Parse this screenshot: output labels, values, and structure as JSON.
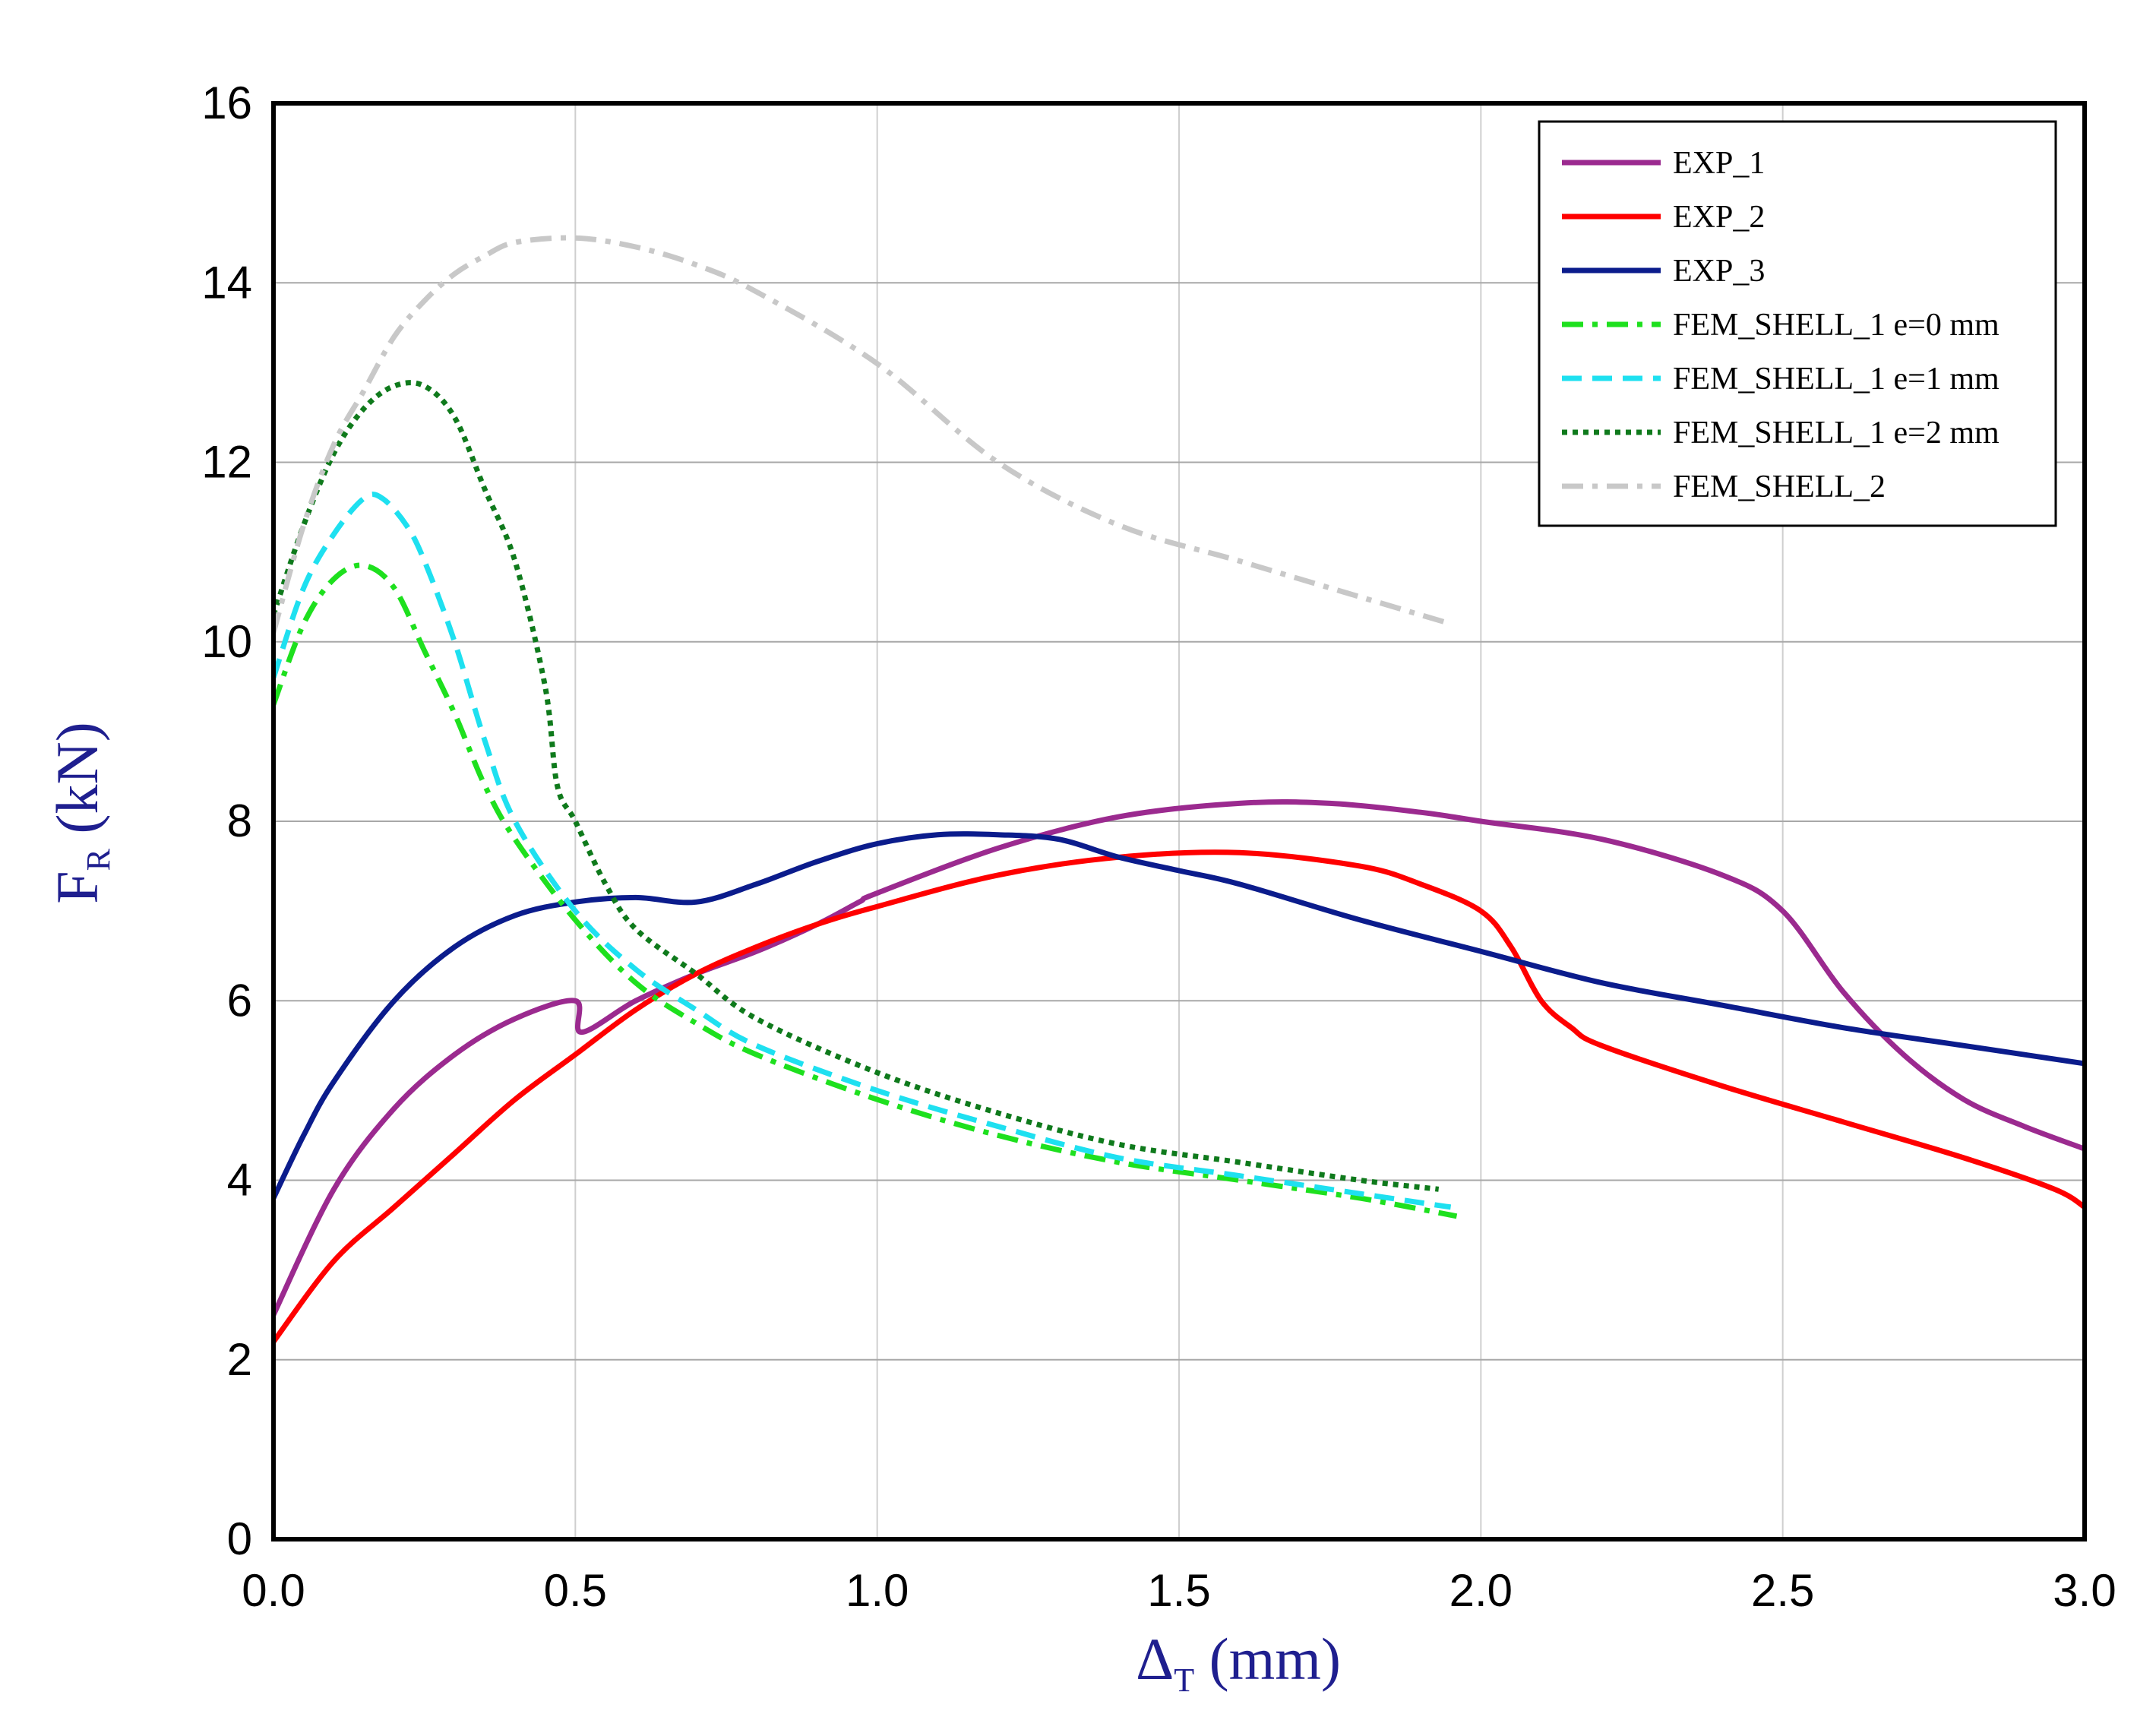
{
  "chart_data": {
    "type": "line",
    "title": "",
    "xlabel": {
      "main": "Δ",
      "sub": "T",
      "unit": " (mm)"
    },
    "ylabel": {
      "main": "F",
      "sub": "R",
      "unit": " (kN)"
    },
    "xlim": [
      0,
      3
    ],
    "ylim": [
      0,
      16
    ],
    "xticks": [
      0,
      0.5,
      1.0,
      1.5,
      2.0,
      2.5,
      3.0
    ],
    "xtick_labels": [
      "0.0",
      "0.5",
      "1.0",
      "1.5",
      "2.0",
      "2.5",
      "3.0"
    ],
    "yticks": [
      0,
      2,
      4,
      6,
      8,
      10,
      12,
      14,
      16
    ],
    "ytick_labels": [
      "0",
      "2",
      "4",
      "6",
      "8",
      "10",
      "12",
      "14",
      "16"
    ],
    "grid": true,
    "legend_position": "top-right",
    "series": [
      {
        "name": "EXP_1",
        "color": "#9b2a8f",
        "dash": "solid",
        "x": [
          0,
          0.1,
          0.2,
          0.3,
          0.4,
          0.5,
          0.51,
          0.6,
          0.7,
          0.8,
          0.9,
          0.97,
          1.0,
          1.2,
          1.4,
          1.6,
          1.75,
          1.9,
          2.0,
          2.2,
          2.4,
          2.5,
          2.6,
          2.7,
          2.8,
          2.9,
          3.0
        ],
        "y": [
          2.5,
          3.9,
          4.8,
          5.4,
          5.8,
          6.0,
          5.65,
          6.0,
          6.3,
          6.55,
          6.85,
          7.1,
          7.2,
          7.7,
          8.05,
          8.2,
          8.2,
          8.1,
          8.0,
          7.8,
          7.4,
          7.0,
          6.1,
          5.4,
          4.9,
          4.6,
          4.35
        ]
      },
      {
        "name": "EXP_2",
        "color": "#ff0000",
        "dash": "solid",
        "x": [
          0,
          0.1,
          0.2,
          0.3,
          0.4,
          0.5,
          0.6,
          0.7,
          0.8,
          0.9,
          1.0,
          1.2,
          1.4,
          1.6,
          1.8,
          1.9,
          2.0,
          2.05,
          2.1,
          2.15,
          2.2,
          2.4,
          2.6,
          2.8,
          2.95,
          3.0
        ],
        "y": [
          2.2,
          3.1,
          3.7,
          4.3,
          4.9,
          5.4,
          5.9,
          6.3,
          6.6,
          6.85,
          7.05,
          7.4,
          7.6,
          7.65,
          7.5,
          7.3,
          7.0,
          6.6,
          6.0,
          5.7,
          5.5,
          5.05,
          4.65,
          4.25,
          3.9,
          3.7
        ]
      },
      {
        "name": "EXP_3",
        "color": "#0b1c8c",
        "dash": "solid",
        "x": [
          0,
          0.05,
          0.1,
          0.2,
          0.3,
          0.4,
          0.5,
          0.6,
          0.7,
          0.8,
          0.9,
          1.0,
          1.1,
          1.2,
          1.3,
          1.4,
          1.5,
          1.6,
          1.8,
          2.0,
          2.2,
          2.4,
          2.6,
          2.8,
          3.0
        ],
        "y": [
          3.8,
          4.5,
          5.1,
          6.0,
          6.6,
          6.95,
          7.1,
          7.15,
          7.1,
          7.3,
          7.55,
          7.75,
          7.85,
          7.85,
          7.8,
          7.6,
          7.45,
          7.3,
          6.9,
          6.55,
          6.2,
          5.95,
          5.7,
          5.5,
          5.3
        ]
      },
      {
        "name": "FEM_SHELL_1 e=0 mm",
        "color": "#1ee01e",
        "dash": "dashdot",
        "x": [
          0,
          0.05,
          0.1,
          0.15,
          0.2,
          0.25,
          0.3,
          0.35,
          0.4,
          0.5,
          0.6,
          0.7,
          0.8,
          1.0,
          1.2,
          1.4,
          1.6,
          1.8,
          1.96
        ],
        "y": [
          9.3,
          10.2,
          10.7,
          10.85,
          10.6,
          9.9,
          9.2,
          8.4,
          7.8,
          6.9,
          6.2,
          5.75,
          5.4,
          4.9,
          4.5,
          4.2,
          4.0,
          3.8,
          3.6
        ]
      },
      {
        "name": "FEM_SHELL_1 e=1 mm",
        "color": "#1ee0f0",
        "dash": "dashed",
        "x": [
          0,
          0.05,
          0.1,
          0.15,
          0.18,
          0.22,
          0.25,
          0.3,
          0.35,
          0.4,
          0.5,
          0.6,
          0.7,
          0.8,
          1.0,
          1.2,
          1.4,
          1.6,
          1.8,
          1.95
        ],
        "y": [
          9.6,
          10.6,
          11.2,
          11.6,
          11.6,
          11.3,
          10.9,
          10.0,
          8.9,
          8.0,
          7.0,
          6.35,
          5.9,
          5.5,
          5.0,
          4.6,
          4.25,
          4.05,
          3.85,
          3.7
        ]
      },
      {
        "name": "FEM_SHELL_1 e=2 mm",
        "color": "#0f7a1c",
        "dash": "dotted",
        "x": [
          0,
          0.05,
          0.1,
          0.15,
          0.2,
          0.25,
          0.3,
          0.35,
          0.4,
          0.45,
          0.47,
          0.5,
          0.55,
          0.6,
          0.7,
          0.8,
          1.0,
          1.2,
          1.4,
          1.6,
          1.8,
          1.93
        ],
        "y": [
          10.3,
          11.3,
          12.1,
          12.6,
          12.85,
          12.85,
          12.5,
          11.7,
          10.9,
          9.5,
          8.4,
          8.0,
          7.3,
          6.8,
          6.3,
          5.8,
          5.2,
          4.75,
          4.4,
          4.2,
          4.0,
          3.9
        ]
      },
      {
        "name": "FEM_SHELL_2",
        "color": "#c8c8c8",
        "dash": "dashdot",
        "x": [
          0,
          0.05,
          0.1,
          0.15,
          0.2,
          0.25,
          0.3,
          0.35,
          0.4,
          0.5,
          0.6,
          0.7,
          0.8,
          1.0,
          1.2,
          1.4,
          1.6,
          1.8,
          1.95
        ],
        "y": [
          10.1,
          11.3,
          12.2,
          12.8,
          13.4,
          13.8,
          14.1,
          14.3,
          14.45,
          14.5,
          14.4,
          14.2,
          13.9,
          13.1,
          12.0,
          11.3,
          10.9,
          10.5,
          10.2
        ]
      }
    ]
  }
}
